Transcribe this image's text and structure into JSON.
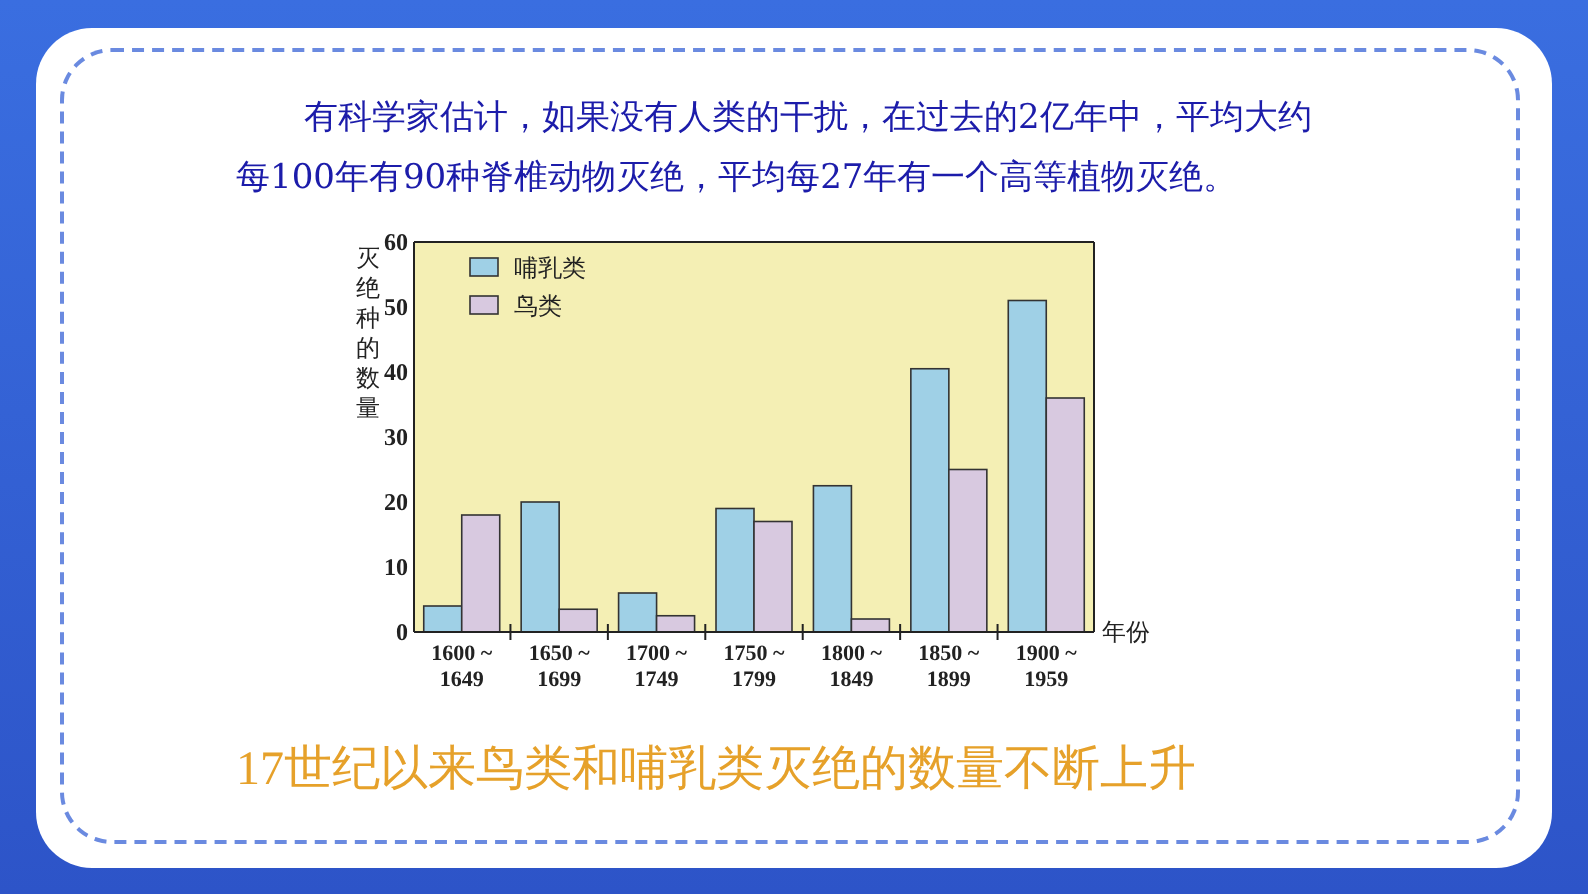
{
  "chart_data": {
    "type": "bar",
    "title": "有科学家估计，如果没有人类的干扰，在过去的2亿年中，平均大约每100年有90种脊椎动物灭绝，平均每27年有一个高等植物灭绝。",
    "ylabel": "灭绝种的数量",
    "xlabel": "年份",
    "categories": [
      "1600 ~\n1649",
      "1650 ~\n1699",
      "1700 ~\n1749",
      "1750 ~\n1799",
      "1800 ~\n1849",
      "1850 ~\n1899",
      "1900 ~\n1959"
    ],
    "series": [
      {
        "name": "哺乳类",
        "color": "#9fd0e6",
        "values": [
          4,
          20,
          6,
          19,
          22.5,
          40.5,
          51
        ]
      },
      {
        "name": "鸟类",
        "color": "#d8c9e0",
        "values": [
          18,
          3.5,
          2.5,
          17,
          2,
          25,
          36
        ]
      }
    ],
    "ylim": [
      0,
      60
    ],
    "yticks": [
      0,
      10,
      20,
      30,
      40,
      50,
      60
    ],
    "legend": "top left",
    "annotations": [
      "17世纪以来鸟类和哺乳类灭绝的数量不断上升"
    ]
  }
}
